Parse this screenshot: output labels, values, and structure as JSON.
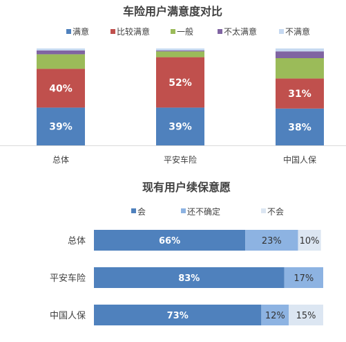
{
  "chart_data": [
    {
      "type": "bar",
      "stacked": true,
      "orientation": "vertical",
      "title": "车险用户满意度对比",
      "categories": [
        "总体",
        "平安车险",
        "中国人保"
      ],
      "series": [
        {
          "name": "满意",
          "values": [
            39,
            39,
            38
          ],
          "color": "#4F81BD"
        },
        {
          "name": "比较满意",
          "values": [
            40,
            52,
            31
          ],
          "color": "#C0504D"
        },
        {
          "name": "一般",
          "values": [
            15,
            6,
            21
          ],
          "color": "#9BBB59"
        },
        {
          "name": "不太满意",
          "values": [
            4,
            1,
            7
          ],
          "color": "#8064A2"
        },
        {
          "name": "不满意",
          "values": [
            2,
            2,
            3
          ],
          "color": "#C6D9F1"
        }
      ],
      "data_labels": {
        "满意": [
          "39%",
          "39%",
          "38%"
        ],
        "比较满意": [
          "40%",
          "52%",
          "31%"
        ]
      },
      "legend": "top",
      "ylim": [
        0,
        100
      ]
    },
    {
      "type": "bar",
      "stacked": true,
      "orientation": "horizontal",
      "title": "现有用户续保意愿",
      "categories": [
        "总体",
        "平安车险",
        "中国人保"
      ],
      "series": [
        {
          "name": "会",
          "values": [
            66,
            83,
            73
          ],
          "color": "#4F81BD"
        },
        {
          "name": "还不确定",
          "values": [
            23,
            17,
            12
          ],
          "color": "#8DB3E2"
        },
        {
          "name": "不会",
          "values": [
            10,
            0,
            15
          ],
          "color": "#DCE6F2"
        }
      ],
      "data_labels": {
        "会": [
          "66%",
          "83%",
          "73%"
        ],
        "还不确定": [
          "23%",
          "17%",
          "12%"
        ],
        "不会": [
          "10%",
          "",
          "15%"
        ]
      },
      "legend": "top",
      "xlim": [
        0,
        100
      ]
    }
  ]
}
